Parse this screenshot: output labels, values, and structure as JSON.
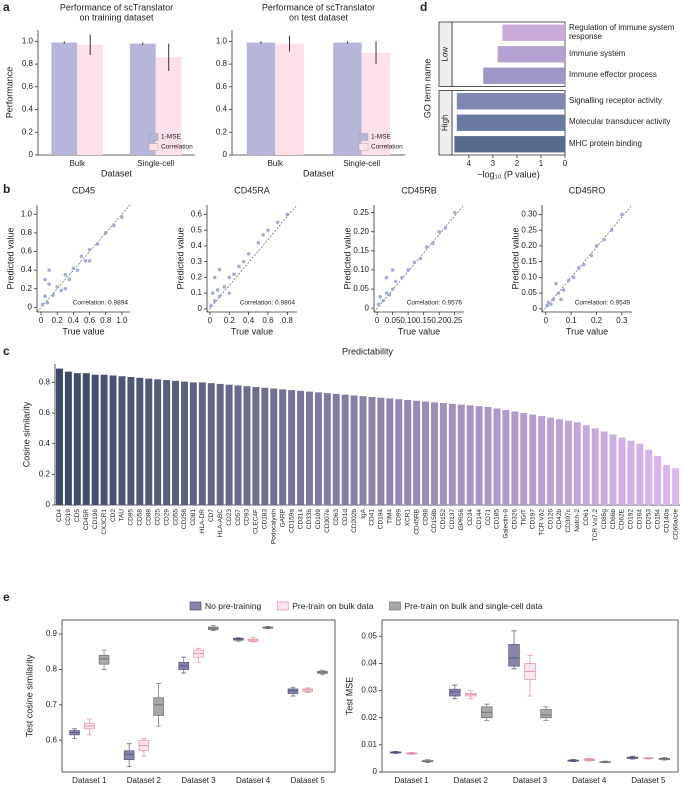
{
  "chart_data": [
    {
      "panel": "a",
      "type": "bar",
      "title": [
        "Performance of scTranslator",
        "on training dataset"
      ],
      "categories": [
        "Bulk",
        "Single-cell"
      ],
      "xlabel": "Dataset",
      "ylabel": "Performance",
      "series": [
        {
          "name": "1-MSE",
          "color": "#b6b6da",
          "values": [
            0.99,
            0.98
          ],
          "errors": [
            0.01,
            0.01
          ]
        },
        {
          "name": "Correlation",
          "color": "#fde0e8",
          "values": [
            0.97,
            0.86
          ],
          "errors": [
            0.09,
            0.12
          ]
        }
      ],
      "ylim": [
        0,
        1.1
      ],
      "yticks": [
        0,
        0.2,
        0.4,
        0.6,
        0.8,
        {
          "value": 1,
          "label": "1.0"
        }
      ],
      "legend": "lower right"
    },
    {
      "type": "bar",
      "title": [
        "Performance of scTranslator",
        "on test dataset"
      ],
      "categories": [
        "Bulk",
        "Single-cell"
      ],
      "xlabel": "Dataset",
      "series": [
        {
          "name": "1-MSE",
          "color": "#b6b6da",
          "values": [
            0.99,
            0.99
          ],
          "errors": [
            0.01,
            0.01
          ]
        },
        {
          "name": "Correlation",
          "color": "#fde0e8",
          "values": [
            0.98,
            0.9
          ],
          "errors": [
            0.07,
            0.1
          ]
        }
      ],
      "ylim": [
        0,
        1.1
      ],
      "yticks": [
        0,
        0.2,
        0.4,
        0.6,
        0.8,
        {
          "value": 1,
          "label": "1.0"
        }
      ],
      "legend": "lower right"
    },
    {
      "panel": "d",
      "type": "hbar",
      "xlabel": "−log₁₀ (P value)",
      "ylabel": "GO term name",
      "groups": [
        {
          "name": "Low",
          "categories": [
            "Regulation of immune system response",
            "Immune system",
            "Immune effector process"
          ],
          "values": [
            2.6,
            2.8,
            3.4
          ],
          "colors": [
            "#c9a9d8",
            "#b5a1d1",
            "#9f96c6"
          ]
        },
        {
          "name": "High",
          "categories": [
            "Signalling receptor activity",
            "Molecular transducer activity",
            "MHC protein binding"
          ],
          "values": [
            4.5,
            4.5,
            4.6
          ],
          "colors": [
            "#7d87b2",
            "#6a7aa2",
            "#566b8d"
          ]
        }
      ],
      "xlim": [
        4.7,
        0
      ],
      "xticks": [
        4,
        3,
        2,
        1,
        0
      ]
    },
    {
      "panel": "b",
      "type": "scatter",
      "title": "CD45",
      "xlabel": "True value",
      "ylabel": "Predicted value",
      "annotation": "Correlation: 0.9894",
      "color": "#8fa3cc",
      "x": [
        0.02,
        0.05,
        0.08,
        0.1,
        0.15,
        0.2,
        0.25,
        0.3,
        0.35,
        0.4,
        0.45,
        0.5,
        0.55,
        0.6,
        0.7,
        0.8,
        0.9,
        1.0,
        0.1,
        0.3,
        0.05,
        0.6
      ],
      "y": [
        0.03,
        0.12,
        0.05,
        0.25,
        0.13,
        0.22,
        0.18,
        0.35,
        0.3,
        0.42,
        0.4,
        0.55,
        0.5,
        0.62,
        0.68,
        0.8,
        0.88,
        0.97,
        0.4,
        0.2,
        0.3,
        0.5
      ],
      "xlim": [
        -0.05,
        1.1
      ],
      "ylim": [
        -0.05,
        1.1
      ],
      "xticks": [
        0,
        0.2,
        0.4,
        0.6,
        0.8,
        {
          "value": 1,
          "label": "1.0"
        }
      ],
      "yticks": [
        0,
        0.2,
        0.4,
        0.6,
        0.8,
        {
          "value": 1,
          "label": "1.0"
        }
      ]
    },
    {
      "type": "scatter",
      "title": "CD45RA",
      "xlabel": "True value",
      "ylabel": "Predicted value",
      "annotation": "Correlation: 0.9804",
      "color": "#8fa3cc",
      "x": [
        0.01,
        0.03,
        0.05,
        0.08,
        0.1,
        0.15,
        0.2,
        0.25,
        0.3,
        0.35,
        0.4,
        0.5,
        0.55,
        0.6,
        0.7,
        0.8,
        0.05,
        0.1,
        0.2
      ],
      "y": [
        0.02,
        0.1,
        0.05,
        0.12,
        0.08,
        0.14,
        0.2,
        0.22,
        0.27,
        0.3,
        0.35,
        0.42,
        0.47,
        0.5,
        0.55,
        0.6,
        0.2,
        0.25,
        0.1
      ],
      "xlim": [
        -0.03,
        0.9
      ],
      "ylim": [
        -0.02,
        0.66
      ],
      "xticks": [
        0,
        0.2,
        0.4,
        0.6,
        0.8
      ],
      "yticks": [
        0,
        0.1,
        0.2,
        0.3,
        0.4,
        0.5,
        0.6
      ]
    },
    {
      "type": "scatter",
      "title": "CD45RB",
      "xlabel": "True value",
      "ylabel": "Predicted value",
      "annotation": "Correlation: 0.9576",
      "color": "#8fa3cc",
      "x": [
        0.005,
        0.01,
        0.02,
        0.03,
        0.04,
        0.05,
        0.06,
        0.08,
        0.1,
        0.12,
        0.14,
        0.16,
        0.18,
        0.2,
        0.22,
        0.25,
        0.03,
        0.05
      ],
      "y": [
        0.01,
        0.03,
        0.02,
        0.04,
        0.035,
        0.05,
        0.07,
        0.08,
        0.1,
        0.12,
        0.13,
        0.16,
        0.17,
        0.2,
        0.21,
        0.25,
        0.08,
        0.1
      ],
      "xlim": [
        -0.01,
        0.28
      ],
      "ylim": [
        -0.01,
        0.27
      ],
      "xticks": [
        0,
        0.05,
        {
          "value": 0.1,
          "label": "0.10"
        },
        0.15,
        {
          "value": 0.2,
          "label": "0.20"
        },
        0.25
      ],
      "yticks": [
        0,
        0.05,
        {
          "value": 0.1,
          "label": "0.10"
        },
        0.15,
        {
          "value": 0.2,
          "label": "0.20"
        },
        0.25
      ]
    },
    {
      "type": "scatter",
      "title": "CD45RO",
      "xlabel": "True value",
      "ylabel": "Predicted value",
      "annotation": "Correlation: 0.9549",
      "color": "#8fa3cc",
      "x": [
        0.005,
        0.01,
        0.02,
        0.03,
        0.05,
        0.07,
        0.09,
        0.11,
        0.13,
        0.15,
        0.18,
        0.2,
        0.23,
        0.26,
        0.3,
        0.04,
        0.06
      ],
      "y": [
        0.01,
        0.02,
        0.015,
        0.03,
        0.05,
        0.06,
        0.09,
        0.1,
        0.13,
        0.14,
        0.17,
        0.2,
        0.22,
        0.25,
        0.3,
        0.08,
        0.03
      ],
      "xlim": [
        -0.015,
        0.34
      ],
      "ylim": [
        -0.01,
        0.33
      ],
      "xticks": [
        0,
        0.1,
        0.2,
        0.3
      ],
      "yticks": [
        0,
        0.05,
        {
          "value": 0.1,
          "label": "0.10"
        },
        0.15,
        {
          "value": 0.2,
          "label": "0.20"
        },
        0.25,
        {
          "value": 0.3,
          "label": "0.30"
        }
      ]
    },
    {
      "panel": "c",
      "type": "bar",
      "title": "Predictability",
      "ylabel": "Cosine similarity",
      "categories": [
        "CD4",
        "CD19",
        "CD5",
        "CD45R",
        "CD196",
        "CX3CR1",
        "CD2",
        "TAU",
        "CD95",
        "CD58",
        "CD88",
        "CD25",
        "CD29",
        "CD55",
        "CD258",
        "CD81",
        "HLA-DR",
        "CD7",
        "HLA-ABC",
        "CD23",
        "CD57",
        "CD93",
        "CLEC4F",
        "CD183",
        "Podocalyxin",
        "GARP",
        "CD159a",
        "CD314",
        "CD336",
        "CD109",
        "CD307e",
        "CD63",
        "CD1d",
        "CD202b",
        "IgA",
        "CD41",
        "CD194",
        "TIM4",
        "CD99",
        "XCR1",
        "CD45RB",
        "CD98",
        "CD158b",
        "CD152",
        "CD137",
        "GPR56",
        "CD34",
        "CD144",
        "CD71",
        "CD185",
        "Galectin-9",
        "CD326",
        "TIGIT",
        "CD197",
        "TCR Vδ2",
        "CD126",
        "CD42b",
        "CD307c",
        "Notch-2",
        "CD61",
        "TCR Vα7.2",
        "CD85g",
        "CD66b",
        "CD62E",
        "CD192",
        "CD164",
        "CD253",
        "CD154",
        "CD140a",
        "CD66a/c/e"
      ],
      "values": [
        0.89,
        0.87,
        0.86,
        0.86,
        0.85,
        0.85,
        0.845,
        0.84,
        0.835,
        0.83,
        0.825,
        0.82,
        0.815,
        0.81,
        0.805,
        0.8,
        0.8,
        0.795,
        0.79,
        0.785,
        0.78,
        0.775,
        0.77,
        0.765,
        0.76,
        0.755,
        0.75,
        0.745,
        0.74,
        0.735,
        0.73,
        0.725,
        0.72,
        0.715,
        0.71,
        0.705,
        0.7,
        0.695,
        0.69,
        0.685,
        0.68,
        0.675,
        0.67,
        0.665,
        0.66,
        0.655,
        0.65,
        0.645,
        0.64,
        0.63,
        0.62,
        0.61,
        0.6,
        0.59,
        0.58,
        0.57,
        0.56,
        0.55,
        0.54,
        0.52,
        0.5,
        0.48,
        0.46,
        0.44,
        0.42,
        0.4,
        0.36,
        0.32,
        0.26,
        0.24
      ],
      "colors": [
        "#3b4a66",
        "#dcb8f0"
      ],
      "ylim": [
        0,
        0.92
      ],
      "yticks": [
        0,
        0.2,
        0.4,
        0.6,
        0.8
      ]
    },
    {
      "panel": "e",
      "type": "box",
      "ylabel": "Test cosine similarity",
      "categories": [
        "Dataset 1",
        "Dataset 2",
        "Dataset 3",
        "Dataset 4",
        "Dataset 5"
      ],
      "series": [
        {
          "name": "No pre-training",
          "color": "#8884ad",
          "edge": "#55557a",
          "values": [
            [
              0.605,
              0.615,
              0.622,
              0.627,
              0.632
            ],
            [
              0.525,
              0.545,
              0.56,
              0.57,
              0.59
            ],
            [
              0.79,
              0.8,
              0.81,
              0.82,
              0.835
            ],
            [
              0.88,
              0.883,
              0.886,
              0.888,
              0.89
            ],
            [
              0.725,
              0.732,
              0.74,
              0.745,
              0.75
            ]
          ]
        },
        {
          "name": "Pre-train on bulk data",
          "color": "#fde6ec",
          "edge": "#e0909f",
          "values": [
            [
              0.615,
              0.632,
              0.64,
              0.648,
              0.66
            ],
            [
              0.555,
              0.57,
              0.585,
              0.6,
              0.605
            ],
            [
              0.82,
              0.835,
              0.845,
              0.855,
              0.86
            ],
            [
              0.878,
              0.88,
              0.883,
              0.886,
              0.89
            ],
            [
              0.735,
              0.738,
              0.742,
              0.745,
              0.748
            ]
          ]
        },
        {
          "name": "Pre-train on bulk and single-cell data",
          "color": "#a8a8a8",
          "edge": "#6e6e6e",
          "values": [
            [
              0.8,
              0.815,
              0.83,
              0.84,
              0.855
            ],
            [
              0.64,
              0.67,
              0.7,
              0.72,
              0.76
            ],
            [
              0.91,
              0.913,
              0.917,
              0.92,
              0.925
            ],
            [
              0.915,
              0.917,
              0.919,
              0.92,
              0.922
            ],
            [
              0.785,
              0.789,
              0.792,
              0.795,
              0.798
            ]
          ]
        }
      ],
      "ylim": [
        0.51,
        0.94
      ],
      "yticks": [
        0.6,
        0.7,
        0.8,
        0.9
      ]
    },
    {
      "type": "box",
      "ylabel": "Test MSE",
      "categories": [
        "Dataset 1",
        "Dataset 2",
        "Dataset 3",
        "Dataset 4",
        "Dataset 5"
      ],
      "series": [
        {
          "color": "#8884ad",
          "edge": "#55557a",
          "values": [
            [
              0.0068,
              0.007,
              0.0072,
              0.0074,
              0.0076
            ],
            [
              0.027,
              0.028,
              0.0295,
              0.0305,
              0.032
            ],
            [
              0.038,
              0.039,
              0.042,
              0.047,
              0.052
            ],
            [
              0.0038,
              0.004,
              0.0042,
              0.0044,
              0.0046
            ],
            [
              0.0048,
              0.005,
              0.0052,
              0.0055,
              0.0058
            ]
          ]
        },
        {
          "color": "#fde6ec",
          "edge": "#e0909f",
          "values": [
            [
              0.0065,
              0.0067,
              0.0069,
              0.007,
              0.0072
            ],
            [
              0.027,
              0.028,
              0.0285,
              0.029,
              0.03
            ],
            [
              0.028,
              0.034,
              0.037,
              0.04,
              0.043
            ],
            [
              0.004,
              0.0042,
              0.0045,
              0.0048,
              0.005
            ],
            [
              0.0048,
              0.005,
              0.0051,
              0.0052,
              0.0053
            ]
          ]
        },
        {
          "color": "#a8a8a8",
          "edge": "#6e6e6e",
          "values": [
            [
              0.0035,
              0.0038,
              0.004,
              0.0042,
              0.0045
            ],
            [
              0.019,
              0.02,
              0.022,
              0.024,
              0.025
            ],
            [
              0.019,
              0.02,
              0.021,
              0.023,
              0.024
            ],
            [
              0.0034,
              0.0035,
              0.0036,
              0.0038,
              0.004
            ],
            [
              0.0044,
              0.0046,
              0.0048,
              0.005,
              0.0053
            ]
          ]
        }
      ],
      "ylim": [
        0,
        0.056
      ],
      "yticks": [
        0,
        0.01,
        0.02,
        0.03,
        0.04,
        0.05
      ]
    }
  ]
}
